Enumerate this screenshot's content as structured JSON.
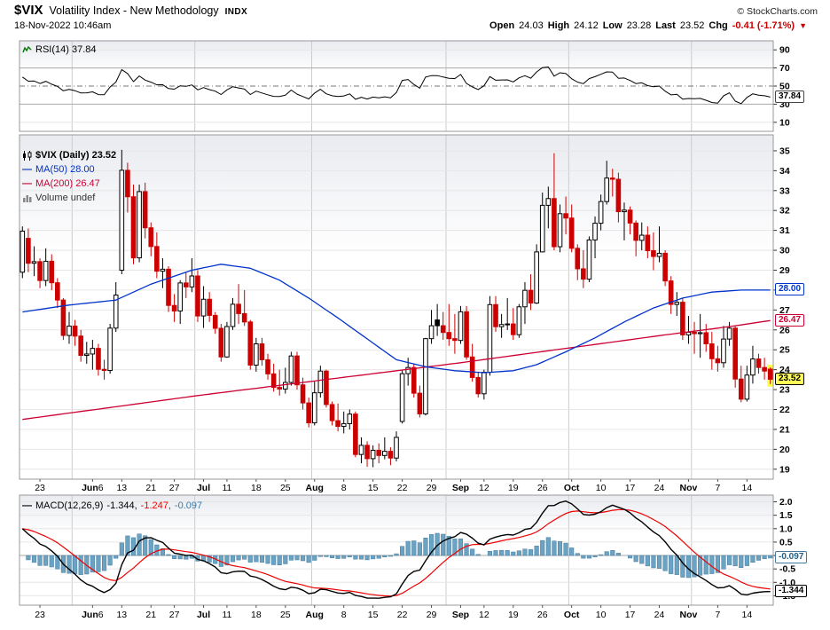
{
  "header": {
    "symbol": "$VIX",
    "name": "Volatility Index - New Methodology",
    "exchange": "INDX",
    "copyright": "© StockCharts.com",
    "datetime": "18-Nov-2022 10:46am",
    "quote": {
      "open_l": "Open",
      "open_v": "24.03",
      "high_l": "High",
      "high_v": "24.12",
      "low_l": "Low",
      "low_v": "23.28",
      "last_l": "Last",
      "last_v": "23.52",
      "chg_l": "Chg",
      "chg_v": "-0.41 (-1.71%)",
      "arrow": "▼"
    }
  },
  "rsi_panel": {
    "legend": "RSI(14) 37.84",
    "badge": {
      "text": "37.84",
      "value": 37.84,
      "color": "#444444",
      "text_color": "#000000"
    }
  },
  "main_panel": {
    "legend_symbol": "$VIX (Daily) 23.52",
    "legend_ma50": "MA(50) 28.00",
    "legend_ma200": "MA(200) 26.47",
    "legend_volume": "Volume undef",
    "badges": [
      {
        "text": "28.00",
        "value": 28.0,
        "color": "#0033cc"
      },
      {
        "text": "26.47",
        "value": 26.47,
        "color": "#cc0033"
      },
      {
        "text": "23.52",
        "value": 23.52,
        "color": "#000000",
        "text_color": "#000000",
        "bg": "#ffff55"
      }
    ]
  },
  "macd_panel": {
    "legend_name": "MACD(12,26,9)",
    "legend_macd": "-1.344,",
    "legend_signal": "-1.247,",
    "legend_hist": "-0.097",
    "badge_hist": {
      "text": "-0.097",
      "value": -0.097,
      "color": "#46799c",
      "text_color": "#1f5f85"
    },
    "badge_macd": {
      "text": "-1.344",
      "value": -1.344,
      "color": "#000000",
      "text_color": "#000000"
    }
  },
  "chart_data": {
    "type": "candlestick",
    "symbol": "$VIX",
    "timeframe": "Daily",
    "last": 23.52,
    "dates": [
      "5/18",
      "5/19",
      "5/20",
      "5/23",
      "5/24",
      "5/25",
      "5/26",
      "5/27",
      "5/31",
      "6/1",
      "6/2",
      "6/3",
      "6/6",
      "6/7",
      "6/8",
      "6/9",
      "6/10",
      "6/13",
      "6/14",
      "6/15",
      "6/16",
      "6/17",
      "6/21",
      "6/22",
      "6/23",
      "6/24",
      "6/27",
      "6/28",
      "6/29",
      "6/30",
      "7/1",
      "7/5",
      "7/6",
      "7/7",
      "7/8",
      "7/11",
      "7/12",
      "7/13",
      "7/14",
      "7/15",
      "7/18",
      "7/19",
      "7/20",
      "7/21",
      "7/22",
      "7/25",
      "7/26",
      "7/27",
      "7/28",
      "7/29",
      "8/1",
      "8/2",
      "8/3",
      "8/4",
      "8/5",
      "8/8",
      "8/9",
      "8/10",
      "8/11",
      "8/12",
      "8/15",
      "8/16",
      "8/17",
      "8/18",
      "8/19",
      "8/22",
      "8/23",
      "8/24",
      "8/25",
      "8/26",
      "8/29",
      "8/30",
      "8/31",
      "9/1",
      "9/2",
      "9/6",
      "9/7",
      "9/8",
      "9/9",
      "9/12",
      "9/13",
      "9/14",
      "9/15",
      "9/16",
      "9/19",
      "9/20",
      "9/21",
      "9/22",
      "9/23",
      "9/26",
      "9/27",
      "9/28",
      "9/29",
      "9/30",
      "10/3",
      "10/4",
      "10/5",
      "10/6",
      "10/7",
      "10/10",
      "10/11",
      "10/12",
      "10/13",
      "10/14",
      "10/17",
      "10/18",
      "10/19",
      "10/20",
      "10/21",
      "10/24",
      "10/25",
      "10/26",
      "10/27",
      "10/28",
      "10/31",
      "11/1",
      "11/2",
      "11/3",
      "11/4",
      "11/7",
      "11/8",
      "11/9",
      "11/10",
      "11/11",
      "11/14",
      "11/15",
      "11/16",
      "11/17",
      "11/18"
    ],
    "ohlc": [
      [
        28.9,
        31.2,
        28.6,
        30.96
      ],
      [
        30.6,
        31.1,
        28.9,
        29.35
      ],
      [
        29.35,
        30.2,
        28.7,
        29.43
      ],
      [
        29.43,
        29.6,
        28.1,
        28.48
      ],
      [
        28.48,
        30.1,
        28.2,
        29.45
      ],
      [
        29.45,
        29.8,
        28.0,
        28.37
      ],
      [
        28.37,
        28.6,
        27.1,
        27.5
      ],
      [
        27.5,
        27.6,
        25.5,
        25.72
      ],
      [
        25.72,
        26.9,
        25.3,
        26.19
      ],
      [
        26.19,
        26.5,
        25.2,
        25.69
      ],
      [
        25.69,
        26.0,
        24.4,
        24.72
      ],
      [
        24.72,
        25.4,
        24.3,
        24.79
      ],
      [
        24.79,
        25.5,
        24.0,
        25.07
      ],
      [
        25.07,
        25.3,
        23.7,
        24.02
      ],
      [
        24.02,
        24.5,
        23.5,
        23.96
      ],
      [
        23.96,
        26.3,
        23.8,
        26.09
      ],
      [
        26.09,
        28.4,
        25.9,
        27.75
      ],
      [
        29.0,
        35.05,
        28.8,
        34.02
      ],
      [
        34.02,
        34.4,
        31.9,
        32.69
      ],
      [
        32.69,
        33.3,
        29.3,
        29.62
      ],
      [
        29.62,
        33.3,
        29.4,
        32.95
      ],
      [
        32.95,
        33.4,
        30.6,
        31.13
      ],
      [
        31.13,
        31.4,
        29.7,
        30.19
      ],
      [
        30.19,
        30.9,
        28.6,
        28.95
      ],
      [
        28.95,
        29.6,
        28.1,
        29.05
      ],
      [
        29.05,
        29.2,
        26.9,
        27.23
      ],
      [
        27.23,
        27.8,
        26.4,
        26.95
      ],
      [
        26.95,
        28.5,
        26.3,
        28.36
      ],
      [
        28.36,
        28.9,
        27.6,
        28.16
      ],
      [
        28.16,
        29.6,
        27.9,
        28.71
      ],
      [
        28.71,
        29.0,
        26.4,
        26.7
      ],
      [
        26.7,
        28.2,
        26.1,
        27.54
      ],
      [
        27.54,
        27.9,
        26.4,
        26.73
      ],
      [
        26.73,
        26.9,
        25.8,
        26.08
      ],
      [
        26.08,
        26.3,
        24.4,
        24.64
      ],
      [
        24.64,
        26.4,
        24.6,
        26.17
      ],
      [
        26.17,
        27.6,
        26.0,
        27.29
      ],
      [
        27.29,
        28.3,
        26.3,
        26.82
      ],
      [
        26.82,
        28.0,
        26.2,
        26.4
      ],
      [
        26.4,
        26.5,
        24.0,
        24.23
      ],
      [
        24.23,
        25.6,
        23.9,
        25.3
      ],
      [
        25.3,
        25.6,
        24.2,
        24.5
      ],
      [
        24.5,
        24.8,
        23.5,
        23.79
      ],
      [
        23.79,
        24.3,
        22.9,
        23.11
      ],
      [
        23.11,
        24.0,
        22.7,
        23.03
      ],
      [
        23.03,
        24.1,
        22.8,
        23.36
      ],
      [
        23.36,
        24.9,
        23.2,
        24.69
      ],
      [
        24.69,
        24.9,
        23.0,
        23.24
      ],
      [
        23.24,
        23.6,
        22.0,
        22.33
      ],
      [
        22.33,
        22.6,
        21.1,
        21.33
      ],
      [
        21.33,
        23.4,
        21.2,
        22.84
      ],
      [
        22.84,
        24.2,
        22.6,
        23.93
      ],
      [
        23.93,
        24.0,
        22.1,
        22.25
      ],
      [
        22.25,
        22.4,
        21.2,
        21.44
      ],
      [
        21.44,
        22.3,
        20.9,
        21.15
      ],
      [
        21.15,
        21.9,
        20.8,
        21.29
      ],
      [
        21.29,
        22.0,
        21.0,
        21.77
      ],
      [
        21.77,
        21.9,
        19.6,
        19.74
      ],
      [
        19.74,
        20.6,
        19.3,
        20.2
      ],
      [
        20.2,
        20.4,
        19.12,
        19.53
      ],
      [
        19.53,
        20.2,
        19.1,
        19.95
      ],
      [
        19.95,
        20.3,
        19.3,
        19.69
      ],
      [
        19.69,
        20.6,
        19.5,
        19.9
      ],
      [
        19.9,
        20.1,
        19.2,
        19.56
      ],
      [
        19.56,
        20.9,
        19.4,
        20.6
      ],
      [
        21.4,
        24.0,
        21.3,
        23.8
      ],
      [
        23.8,
        24.6,
        23.2,
        24.11
      ],
      [
        24.11,
        24.3,
        22.6,
        22.82
      ],
      [
        22.82,
        23.2,
        21.6,
        21.78
      ],
      [
        21.78,
        25.6,
        21.7,
        25.56
      ],
      [
        25.56,
        27.0,
        25.3,
        26.21
      ],
      [
        26.5,
        27.3,
        25.7,
        26.21
      ],
      [
        26.21,
        26.9,
        25.5,
        25.87
      ],
      [
        25.87,
        27.3,
        25.2,
        25.56
      ],
      [
        25.56,
        26.8,
        24.8,
        25.47
      ],
      [
        25.47,
        27.2,
        25.3,
        26.91
      ],
      [
        26.91,
        27.2,
        24.5,
        24.64
      ],
      [
        24.64,
        25.3,
        23.4,
        23.61
      ],
      [
        23.61,
        23.9,
        22.6,
        22.79
      ],
      [
        22.79,
        24.0,
        22.5,
        23.87
      ],
      [
        23.87,
        27.7,
        23.7,
        27.27
      ],
      [
        27.27,
        27.7,
        25.9,
        26.16
      ],
      [
        26.16,
        26.8,
        25.6,
        26.27
      ],
      [
        26.27,
        27.6,
        26.0,
        26.3
      ],
      [
        26.3,
        27.1,
        25.5,
        25.76
      ],
      [
        25.76,
        27.3,
        25.6,
        27.16
      ],
      [
        27.16,
        28.4,
        26.3,
        27.99
      ],
      [
        27.99,
        28.8,
        27.0,
        27.35
      ],
      [
        27.35,
        30.3,
        27.3,
        29.92
      ],
      [
        29.92,
        32.9,
        29.9,
        32.26
      ],
      [
        32.26,
        33.2,
        31.1,
        32.6
      ],
      [
        32.6,
        34.88,
        30.0,
        30.18
      ],
      [
        30.18,
        32.3,
        29.9,
        31.84
      ],
      [
        31.84,
        32.7,
        30.8,
        31.62
      ],
      [
        31.62,
        32.3,
        29.9,
        30.1
      ],
      [
        30.1,
        30.3,
        28.5,
        29.07
      ],
      [
        29.07,
        30.0,
        28.1,
        28.55
      ],
      [
        28.55,
        30.7,
        28.4,
        30.52
      ],
      [
        30.52,
        31.7,
        29.6,
        31.36
      ],
      [
        31.36,
        32.8,
        31.0,
        32.45
      ],
      [
        32.45,
        34.5,
        32.3,
        33.63
      ],
      [
        33.63,
        34.1,
        32.7,
        33.57
      ],
      [
        33.57,
        33.9,
        31.4,
        31.94
      ],
      [
        31.94,
        32.4,
        30.5,
        32.02
      ],
      [
        32.02,
        32.2,
        30.8,
        31.37
      ],
      [
        31.37,
        31.5,
        29.7,
        30.5
      ],
      [
        30.5,
        31.4,
        30.0,
        30.76
      ],
      [
        30.76,
        31.2,
        29.6,
        29.98
      ],
      [
        29.98,
        30.9,
        29.0,
        29.69
      ],
      [
        29.69,
        31.2,
        29.4,
        29.85
      ],
      [
        29.85,
        30.0,
        28.2,
        28.46
      ],
      [
        28.46,
        28.7,
        26.8,
        27.28
      ],
      [
        27.28,
        27.9,
        26.7,
        27.39
      ],
      [
        27.39,
        27.6,
        25.5,
        25.75
      ],
      [
        25.75,
        26.7,
        25.3,
        25.88
      ],
      [
        25.88,
        26.4,
        24.8,
        25.81
      ],
      [
        25.81,
        26.8,
        24.6,
        25.86
      ],
      [
        25.86,
        26.3,
        24.9,
        25.3
      ],
      [
        25.3,
        25.9,
        24.0,
        24.55
      ],
      [
        24.55,
        25.2,
        23.9,
        24.35
      ],
      [
        24.35,
        26.2,
        24.1,
        25.54
      ],
      [
        25.54,
        26.4,
        25.2,
        26.09
      ],
      [
        26.09,
        26.2,
        23.1,
        23.53
      ],
      [
        23.53,
        24.2,
        22.36,
        22.52
      ],
      [
        22.52,
        24.2,
        22.4,
        23.73
      ],
      [
        23.73,
        25.2,
        23.3,
        24.54
      ],
      [
        24.54,
        24.8,
        23.8,
        24.11
      ],
      [
        24.11,
        24.6,
        23.5,
        23.93
      ],
      [
        24.03,
        24.12,
        23.28,
        23.52
      ]
    ],
    "overlays": [
      {
        "name": "MA(50)",
        "color": "#0033cc",
        "last": 28.0,
        "anchors": [
          [
            0,
            26.9
          ],
          [
            8,
            27.25
          ],
          [
            16,
            27.5
          ],
          [
            22,
            28.3
          ],
          [
            29,
            29.0
          ],
          [
            34,
            29.3
          ],
          [
            39,
            29.1
          ],
          [
            44,
            28.5
          ],
          [
            49,
            27.6
          ],
          [
            54,
            26.6
          ],
          [
            59,
            25.55
          ],
          [
            64,
            24.5
          ],
          [
            69,
            24.15
          ],
          [
            74,
            23.95
          ],
          [
            79,
            23.85
          ],
          [
            84,
            23.95
          ],
          [
            88,
            24.25
          ],
          [
            93,
            24.9
          ],
          [
            98,
            25.6
          ],
          [
            103,
            26.4
          ],
          [
            108,
            27.1
          ],
          [
            113,
            27.6
          ],
          [
            118,
            27.9
          ],
          [
            123,
            28.0
          ],
          [
            128,
            28.0
          ]
        ]
      },
      {
        "name": "MA(200)",
        "color": "#cc0033",
        "last": 26.47,
        "anchors": [
          [
            0,
            21.5
          ],
          [
            15,
            22.1
          ],
          [
            30,
            22.7
          ],
          [
            45,
            23.25
          ],
          [
            60,
            23.8
          ],
          [
            75,
            24.35
          ],
          [
            90,
            24.95
          ],
          [
            100,
            25.35
          ],
          [
            110,
            25.75
          ],
          [
            118,
            26.05
          ],
          [
            123,
            26.25
          ],
          [
            128,
            26.47
          ]
        ]
      }
    ],
    "indicators": {
      "rsi": {
        "period": 14,
        "last": 37.84
      },
      "macd": {
        "params": [
          12,
          26,
          9
        ],
        "last": -1.344,
        "signal_last": -1.247,
        "hist_last": -0.097
      },
      "volume": "undef"
    },
    "y_axis": {
      "main_ticks": [
        35,
        34,
        33,
        32,
        31,
        30,
        29,
        28,
        27,
        26,
        25,
        24,
        23,
        22,
        21,
        20,
        19
      ],
      "rsi_ticks": [
        90,
        70,
        50,
        30,
        10
      ],
      "macd_ticks": [
        2.0,
        1.5,
        1.0,
        0.5,
        0.0,
        -0.5,
        -1.0,
        -1.5
      ]
    },
    "x_ticks": [
      {
        "i": 3,
        "t": "23"
      },
      {
        "i": 12,
        "t": "Jun",
        "b": true,
        "t2": "6"
      },
      {
        "i": 17,
        "t": "13"
      },
      {
        "i": 22,
        "t": "21"
      },
      {
        "i": 26,
        "t": "27"
      },
      {
        "i": 31,
        "t": "Jul",
        "b": true
      },
      {
        "i": 35,
        "t": "11"
      },
      {
        "i": 40,
        "t": "18"
      },
      {
        "i": 45,
        "t": "25"
      },
      {
        "i": 50,
        "t": "Aug",
        "b": true
      },
      {
        "i": 55,
        "t": "8"
      },
      {
        "i": 60,
        "t": "15"
      },
      {
        "i": 65,
        "t": "22"
      },
      {
        "i": 70,
        "t": "29"
      },
      {
        "i": 75,
        "t": "Sep",
        "b": true
      },
      {
        "i": 79,
        "t": "12"
      },
      {
        "i": 84,
        "t": "19"
      },
      {
        "i": 89,
        "t": "26"
      },
      {
        "i": 94,
        "t": "Oct",
        "b": true
      },
      {
        "i": 99,
        "t": "10"
      },
      {
        "i": 104,
        "t": "17"
      },
      {
        "i": 109,
        "t": "24"
      },
      {
        "i": 114,
        "t": "Nov",
        "b": true
      },
      {
        "i": 119,
        "t": "7"
      },
      {
        "i": 124,
        "t": "14"
      }
    ],
    "month_start_indices": [
      9,
      30,
      50,
      73,
      94,
      115
    ]
  }
}
